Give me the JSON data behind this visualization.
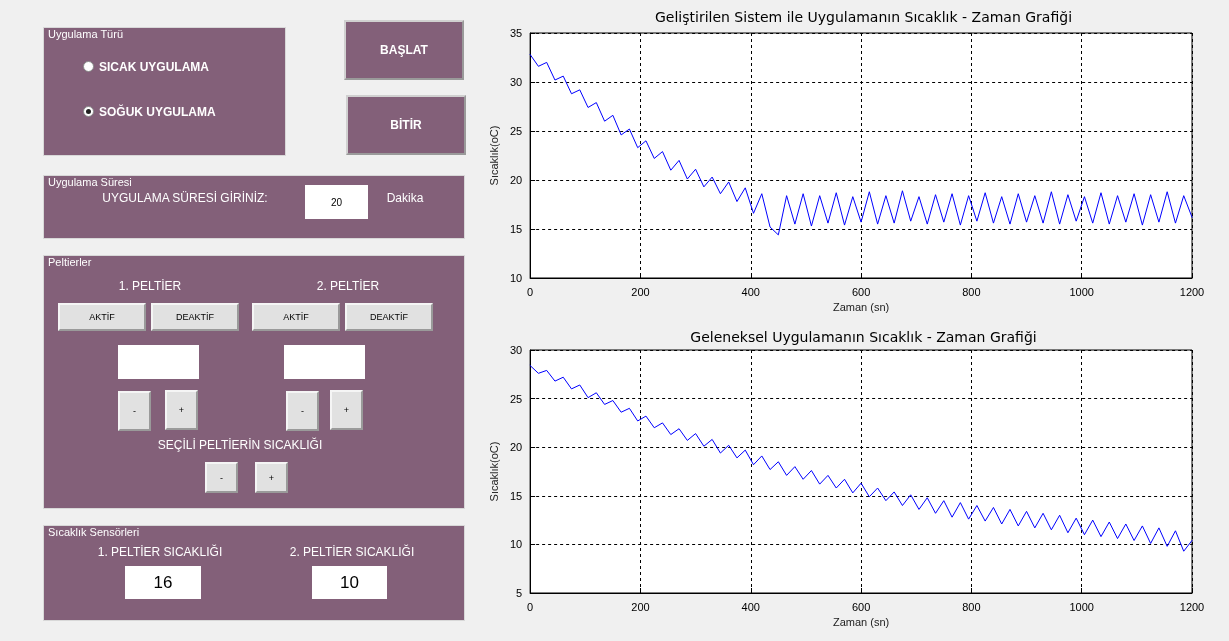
{
  "chart_data": [
    {
      "type": "other",
      "annotations": [
        "Uygulama Türü",
        "SICAK UYGULAMA",
        "SOĞUK UYGULAMA",
        "BAŞLAT",
        "BİTİR",
        "Uygulama Süresi",
        "UYGULAMA SÜRESİ GİRİNİZ:",
        "20",
        "Dakika",
        "Peltierler",
        "1. PELTİER",
        "2. PELTİER",
        "AKTİF",
        "DEAKTİF",
        "AKTİF",
        "DEAKTİF",
        "-",
        "+",
        "-",
        "+",
        "SEÇİLİ PELTİERİN SICAKLIĞI",
        "-",
        "+",
        "Sıcaklık Sensörleri",
        "1. PELTİER SICAKLIĞI",
        "2. PELTİER SICAKLIĞI",
        "16",
        "10"
      ]
    },
    {
      "type": "line",
      "title": "Geliştirilen Sistem ile Uygulamanın Sıcaklık - Zaman Grafiği",
      "xlabel": "Zaman (sn)",
      "ylabel": "Sıcaklık(oC)",
      "xlim": [
        0,
        1200
      ],
      "xticks": [
        0,
        200,
        400,
        600,
        800,
        1000,
        1200
      ],
      "ylim": [
        10,
        35
      ],
      "yticks": [
        10,
        15,
        20,
        25,
        30,
        35
      ],
      "grid": true,
      "marker": "none",
      "line_style": "solid",
      "x": [
        0,
        15,
        30,
        45,
        60,
        75,
        90,
        105,
        120,
        135,
        150,
        165,
        180,
        195,
        210,
        225,
        240,
        255,
        270,
        285,
        300,
        315,
        330,
        345,
        360,
        375,
        390,
        405,
        420,
        435,
        450,
        465,
        480,
        495,
        510,
        525,
        540,
        555,
        570,
        585,
        600,
        615,
        630,
        645,
        660,
        675,
        690,
        705,
        720,
        735,
        750,
        765,
        780,
        795,
        810,
        825,
        840,
        855,
        870,
        885,
        900,
        915,
        930,
        945,
        960,
        975,
        990,
        1005,
        1020,
        1035,
        1050,
        1065,
        1080,
        1095,
        1110,
        1125,
        1140,
        1155,
        1170,
        1185,
        1200
      ],
      "series": [
        {
          "color": "#0000ff",
          "values": [
            32.8,
            31.6,
            32.0,
            30.2,
            30.6,
            28.8,
            29.2,
            27.4,
            27.9,
            26.0,
            26.6,
            24.6,
            25.2,
            23.3,
            24.0,
            22.2,
            22.9,
            21.0,
            22.0,
            20.1,
            21.1,
            19.3,
            20.3,
            18.6,
            19.8,
            17.8,
            19.2,
            16.6,
            18.6,
            15.2,
            14.4,
            18.4,
            15.5,
            18.6,
            15.3,
            18.4,
            15.6,
            18.7,
            15.4,
            18.3,
            15.7,
            18.8,
            15.5,
            18.4,
            15.6,
            18.9,
            15.8,
            18.3,
            15.5,
            18.5,
            15.7,
            18.6,
            15.4,
            18.4,
            15.8,
            18.7,
            15.6,
            18.3,
            15.5,
            18.6,
            15.7,
            18.4,
            15.6,
            18.8,
            15.5,
            18.5,
            15.8,
            18.3,
            15.6,
            18.7,
            15.5,
            18.4,
            15.7,
            18.6,
            15.4,
            18.5,
            15.7,
            18.8,
            15.6,
            18.4,
            16.2
          ]
        }
      ]
    },
    {
      "type": "line",
      "title": "Geleneksel Uygulamanın Sıcaklık - Zaman Grafiği",
      "xlabel": "Zaman (sn)",
      "ylabel": "Sıcaklık(oC)",
      "xlim": [
        0,
        1200
      ],
      "xticks": [
        0,
        200,
        400,
        600,
        800,
        1000,
        1200
      ],
      "ylim": [
        5,
        30
      ],
      "yticks": [
        5,
        10,
        15,
        20,
        25,
        30
      ],
      "grid": true,
      "marker": "none",
      "line_style": "solid",
      "x": [
        0,
        15,
        30,
        45,
        60,
        75,
        90,
        105,
        120,
        135,
        150,
        165,
        180,
        195,
        210,
        225,
        240,
        255,
        270,
        285,
        300,
        315,
        330,
        345,
        360,
        375,
        390,
        405,
        420,
        435,
        450,
        465,
        480,
        495,
        510,
        525,
        540,
        555,
        570,
        585,
        600,
        615,
        630,
        645,
        660,
        675,
        690,
        705,
        720,
        735,
        750,
        765,
        780,
        795,
        810,
        825,
        840,
        855,
        870,
        885,
        900,
        915,
        930,
        945,
        960,
        975,
        990,
        1005,
        1020,
        1035,
        1050,
        1065,
        1080,
        1095,
        1110,
        1125,
        1140,
        1155,
        1170,
        1185,
        1200
      ],
      "series": [
        {
          "color": "#0000ff",
          "values": [
            28.4,
            27.6,
            27.9,
            26.8,
            27.2,
            26.0,
            26.4,
            25.1,
            25.6,
            24.4,
            24.8,
            23.6,
            24.0,
            22.7,
            23.2,
            22.0,
            22.5,
            21.3,
            21.9,
            20.7,
            21.4,
            20.1,
            20.8,
            19.4,
            20.2,
            18.9,
            19.7,
            18.2,
            19.1,
            17.7,
            18.5,
            17.1,
            18.0,
            16.7,
            17.6,
            16.2,
            17.1,
            15.8,
            16.7,
            15.3,
            16.3,
            14.9,
            15.8,
            14.5,
            15.4,
            14.0,
            15.1,
            13.6,
            14.8,
            13.2,
            14.5,
            12.8,
            14.3,
            12.6,
            14.0,
            12.4,
            13.8,
            12.1,
            13.6,
            11.9,
            13.4,
            11.7,
            13.2,
            11.5,
            13.0,
            11.2,
            12.7,
            11.0,
            12.5,
            10.8,
            12.3,
            10.6,
            12.1,
            10.4,
            11.9,
            10.1,
            11.7,
            9.8,
            11.4,
            9.3,
            10.4
          ]
        }
      ]
    }
  ]
}
